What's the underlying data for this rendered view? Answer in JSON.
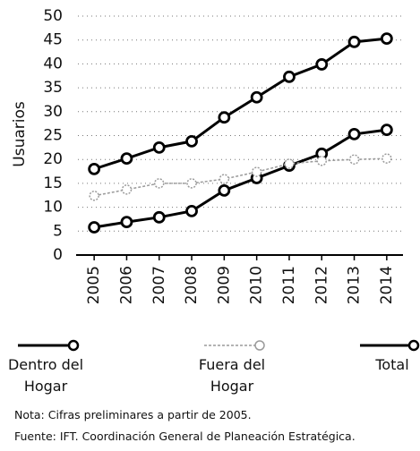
{
  "chart_data": {
    "type": "line",
    "y_label": "Usuarios",
    "categories": [
      "2005",
      "2006",
      "2007",
      "2008",
      "2009",
      "2010",
      "2011",
      "2012",
      "2013",
      "2014"
    ],
    "series": [
      {
        "name": "Dentro del Hogar",
        "color": "#000000",
        "style": "solid",
        "values": [
          5.8,
          6.9,
          7.9,
          9.2,
          13.5,
          16.1,
          18.7,
          21.2,
          25.3,
          26.2
        ]
      },
      {
        "name": "Fuera del Hogar",
        "color": "#9a9a9a",
        "style": "dashed",
        "values": [
          12.4,
          13.7,
          15.0,
          15.0,
          15.9,
          17.4,
          19.1,
          19.7,
          20.0,
          20.2
        ]
      },
      {
        "name": "Total",
        "color": "#000000",
        "style": "solid",
        "values": [
          18.0,
          20.2,
          22.5,
          23.8,
          28.8,
          33.0,
          37.3,
          39.9,
          44.6,
          45.3
        ]
      }
    ],
    "ylim": [
      0,
      50
    ],
    "yticks": [
      0,
      5,
      10,
      15,
      20,
      25,
      30,
      35,
      40,
      45,
      50
    ],
    "grid": true,
    "notes": [
      "Nota: Cifras preliminares a partir de 2005.",
      "Fuente: IFT. Coordinación General de Planeación Estratégica."
    ]
  }
}
